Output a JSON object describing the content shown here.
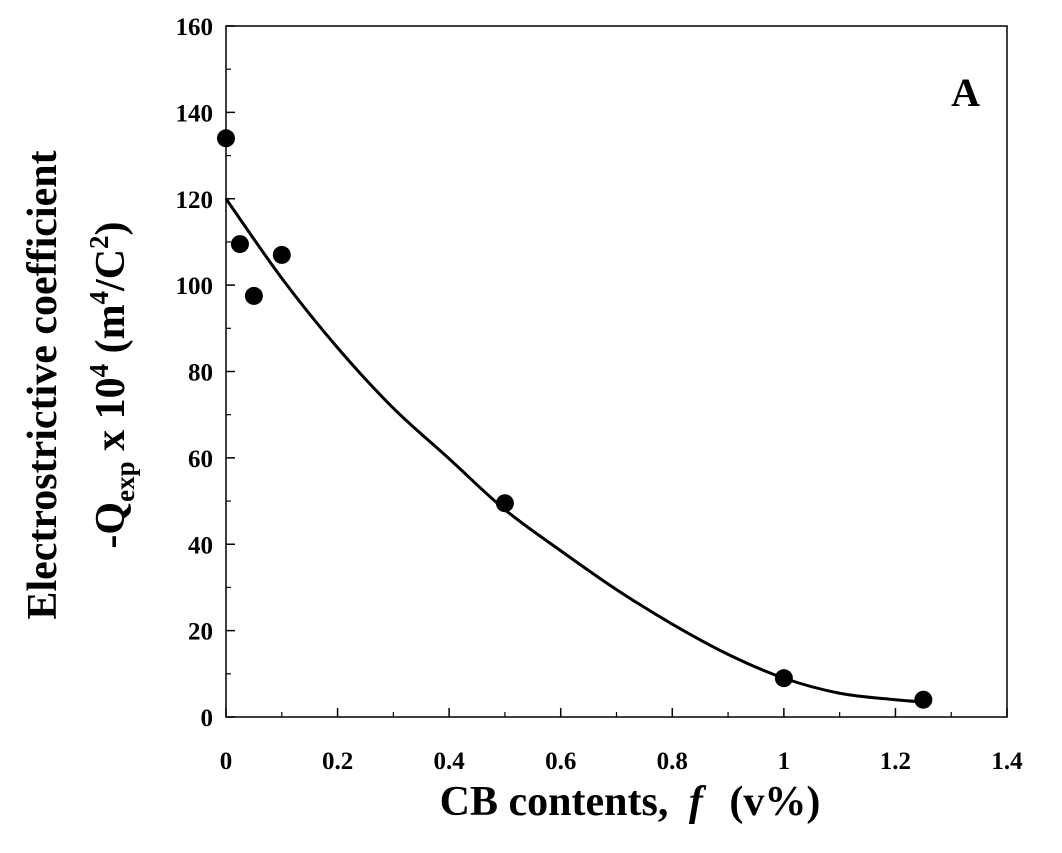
{
  "chart_data": {
    "type": "scatter",
    "panel_label": "A",
    "xlabel": {
      "main": "CB contents,",
      "italic": "f",
      "unit": "(v%)"
    },
    "ylabel": {
      "line1": "Electrostrictive coefficient",
      "line2": {
        "prefix": "-Q",
        "subscript": "exp",
        "middle": " x 10",
        "superscript": "4",
        "unit_open": " (m",
        "unit_sup": "4",
        "unit_mid": "/C",
        "unit_sup2": "2",
        "unit_close": ")"
      }
    },
    "xlim": [
      0,
      1.4
    ],
    "ylim": [
      0,
      160
    ],
    "x_ticks": [
      0,
      0.2,
      0.4,
      0.6,
      0.8,
      1,
      1.2,
      1.4
    ],
    "x_tick_labels": [
      "0",
      "0.2",
      "0.4",
      "0.6",
      "0.8",
      "1",
      "1.2",
      "1.4"
    ],
    "y_ticks": [
      0,
      20,
      40,
      60,
      80,
      100,
      120,
      140,
      160
    ],
    "y_tick_labels": [
      "0",
      "20",
      "40",
      "60",
      "80",
      "100",
      "120",
      "140",
      "160"
    ],
    "grid": false,
    "series": [
      {
        "kind": "points",
        "x": [
          0,
          0.025,
          0.05,
          0.1,
          0.5,
          1.0,
          1.25
        ],
        "y": [
          134,
          109.5,
          97.5,
          107,
          49.5,
          9,
          4
        ]
      },
      {
        "kind": "fit-curve",
        "x": [
          0,
          0.1,
          0.2,
          0.3,
          0.4,
          0.5,
          0.6,
          0.7,
          0.8,
          0.9,
          1.0,
          1.1,
          1.2,
          1.25
        ],
        "y": [
          120,
          101.6,
          85.5,
          71.5,
          59.8,
          48,
          38.5,
          29.5,
          21.5,
          14.5,
          9,
          5.5,
          4,
          3.5
        ]
      }
    ]
  }
}
